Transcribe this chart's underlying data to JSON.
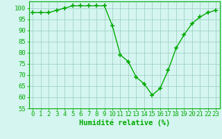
{
  "x": [
    0,
    1,
    2,
    3,
    4,
    5,
    6,
    7,
    8,
    9,
    10,
    11,
    12,
    13,
    14,
    15,
    16,
    17,
    18,
    19,
    20,
    21,
    22,
    23
  ],
  "y": [
    98,
    98,
    98,
    99,
    100,
    101,
    101,
    101,
    101,
    101,
    92,
    79,
    76,
    69,
    66,
    61,
    64,
    72,
    82,
    88,
    93,
    96,
    98,
    99
  ],
  "line_color": "#00aa00",
  "marker_color": "#00aa00",
  "bg_color": "#d4f5f0",
  "grid_color": "#99ccbb",
  "xlabel": "Humidité relative (%)",
  "xlabel_color": "#00aa00",
  "ylim": [
    55,
    103
  ],
  "yticks": [
    55,
    60,
    65,
    70,
    75,
    80,
    85,
    90,
    95,
    100
  ],
  "xlim": [
    -0.5,
    23.5
  ],
  "xlabel_fontsize": 7.5,
  "tick_fontsize": 6.5
}
